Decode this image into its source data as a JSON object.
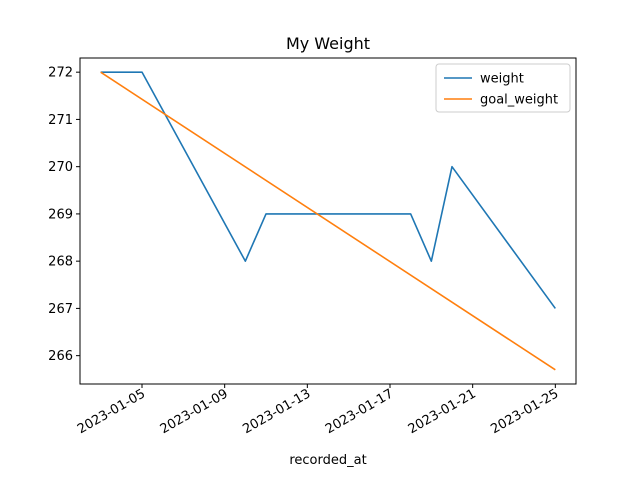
{
  "chart_data": {
    "type": "line",
    "title": "My Weight",
    "xlabel": "recorded_at",
    "ylabel": "",
    "x_type": "date",
    "xlim": [
      "2023-01-02",
      "2023-01-26"
    ],
    "ylim": [
      265.4,
      272.3
    ],
    "x_ticks": [
      "2023-01-05",
      "2023-01-09",
      "2023-01-13",
      "2023-01-17",
      "2023-01-21",
      "2023-01-25"
    ],
    "y_ticks": [
      266,
      267,
      268,
      269,
      270,
      271,
      272
    ],
    "grid": false,
    "legend": "top-right",
    "series": [
      {
        "name": "weight",
        "color": "#1f77b4",
        "points": [
          {
            "x": "2023-01-03",
            "y": 272
          },
          {
            "x": "2023-01-05",
            "y": 272
          },
          {
            "x": "2023-01-10",
            "y": 268
          },
          {
            "x": "2023-01-11",
            "y": 269
          },
          {
            "x": "2023-01-18",
            "y": 269
          },
          {
            "x": "2023-01-19",
            "y": 268
          },
          {
            "x": "2023-01-20",
            "y": 270
          },
          {
            "x": "2023-01-25",
            "y": 267
          }
        ]
      },
      {
        "name": "goal_weight",
        "color": "#ff7f0e",
        "points": [
          {
            "x": "2023-01-03",
            "y": 272
          },
          {
            "x": "2023-01-25",
            "y": 265.7
          }
        ]
      }
    ]
  }
}
